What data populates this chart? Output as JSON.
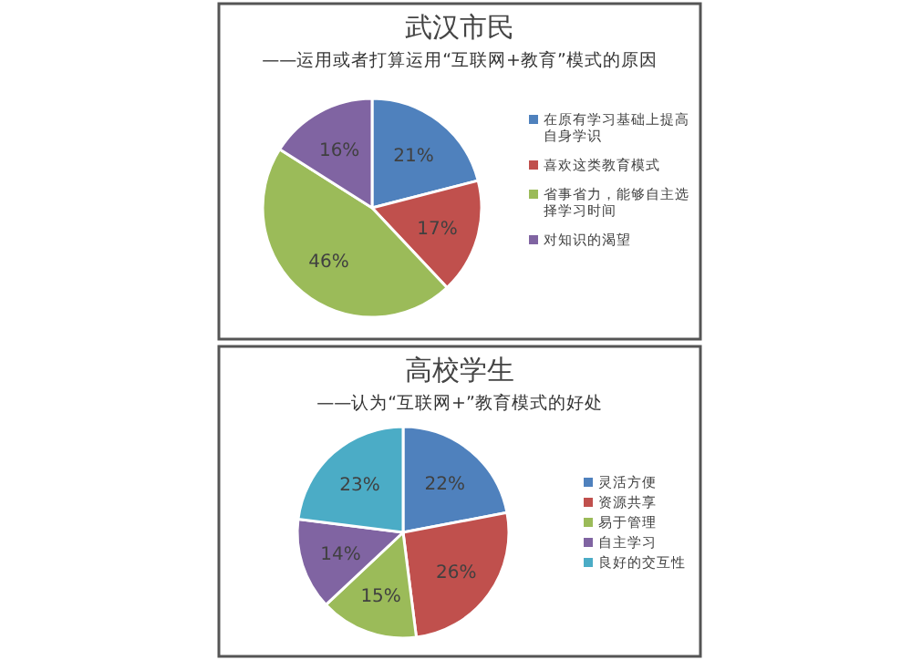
{
  "chart_data": [
    {
      "type": "pie",
      "title": "武汉市民",
      "subtitle": "——运用或者打算运用“互联网+教育”模式的原因",
      "legend": "right",
      "categories": [
        "在原有学习基础上提高自身学识",
        "喜欢这类教育模式",
        "省事省力，能够自主选择学习时间",
        "对知识的渴望"
      ],
      "values": [
        21,
        17,
        46,
        16
      ],
      "value_labels": [
        "21%",
        "17%",
        "46%",
        "16%"
      ],
      "colors": [
        "#4f81bd",
        "#c0504d",
        "#9bbb59",
        "#8064a2"
      ]
    },
    {
      "type": "pie",
      "title": "高校学生",
      "subtitle": "——认为“互联网+”教育模式的好处",
      "legend": "right",
      "categories": [
        "灵活方便",
        "资源共享",
        "易于管理",
        "自主学习",
        "良好的交互性"
      ],
      "values": [
        22,
        26,
        15,
        14,
        23
      ],
      "value_labels": [
        "22%",
        "26%",
        "15%",
        "14%",
        "23%"
      ],
      "colors": [
        "#4f81bd",
        "#c0504d",
        "#9bbb59",
        "#8064a2",
        "#4bacc6"
      ]
    }
  ]
}
